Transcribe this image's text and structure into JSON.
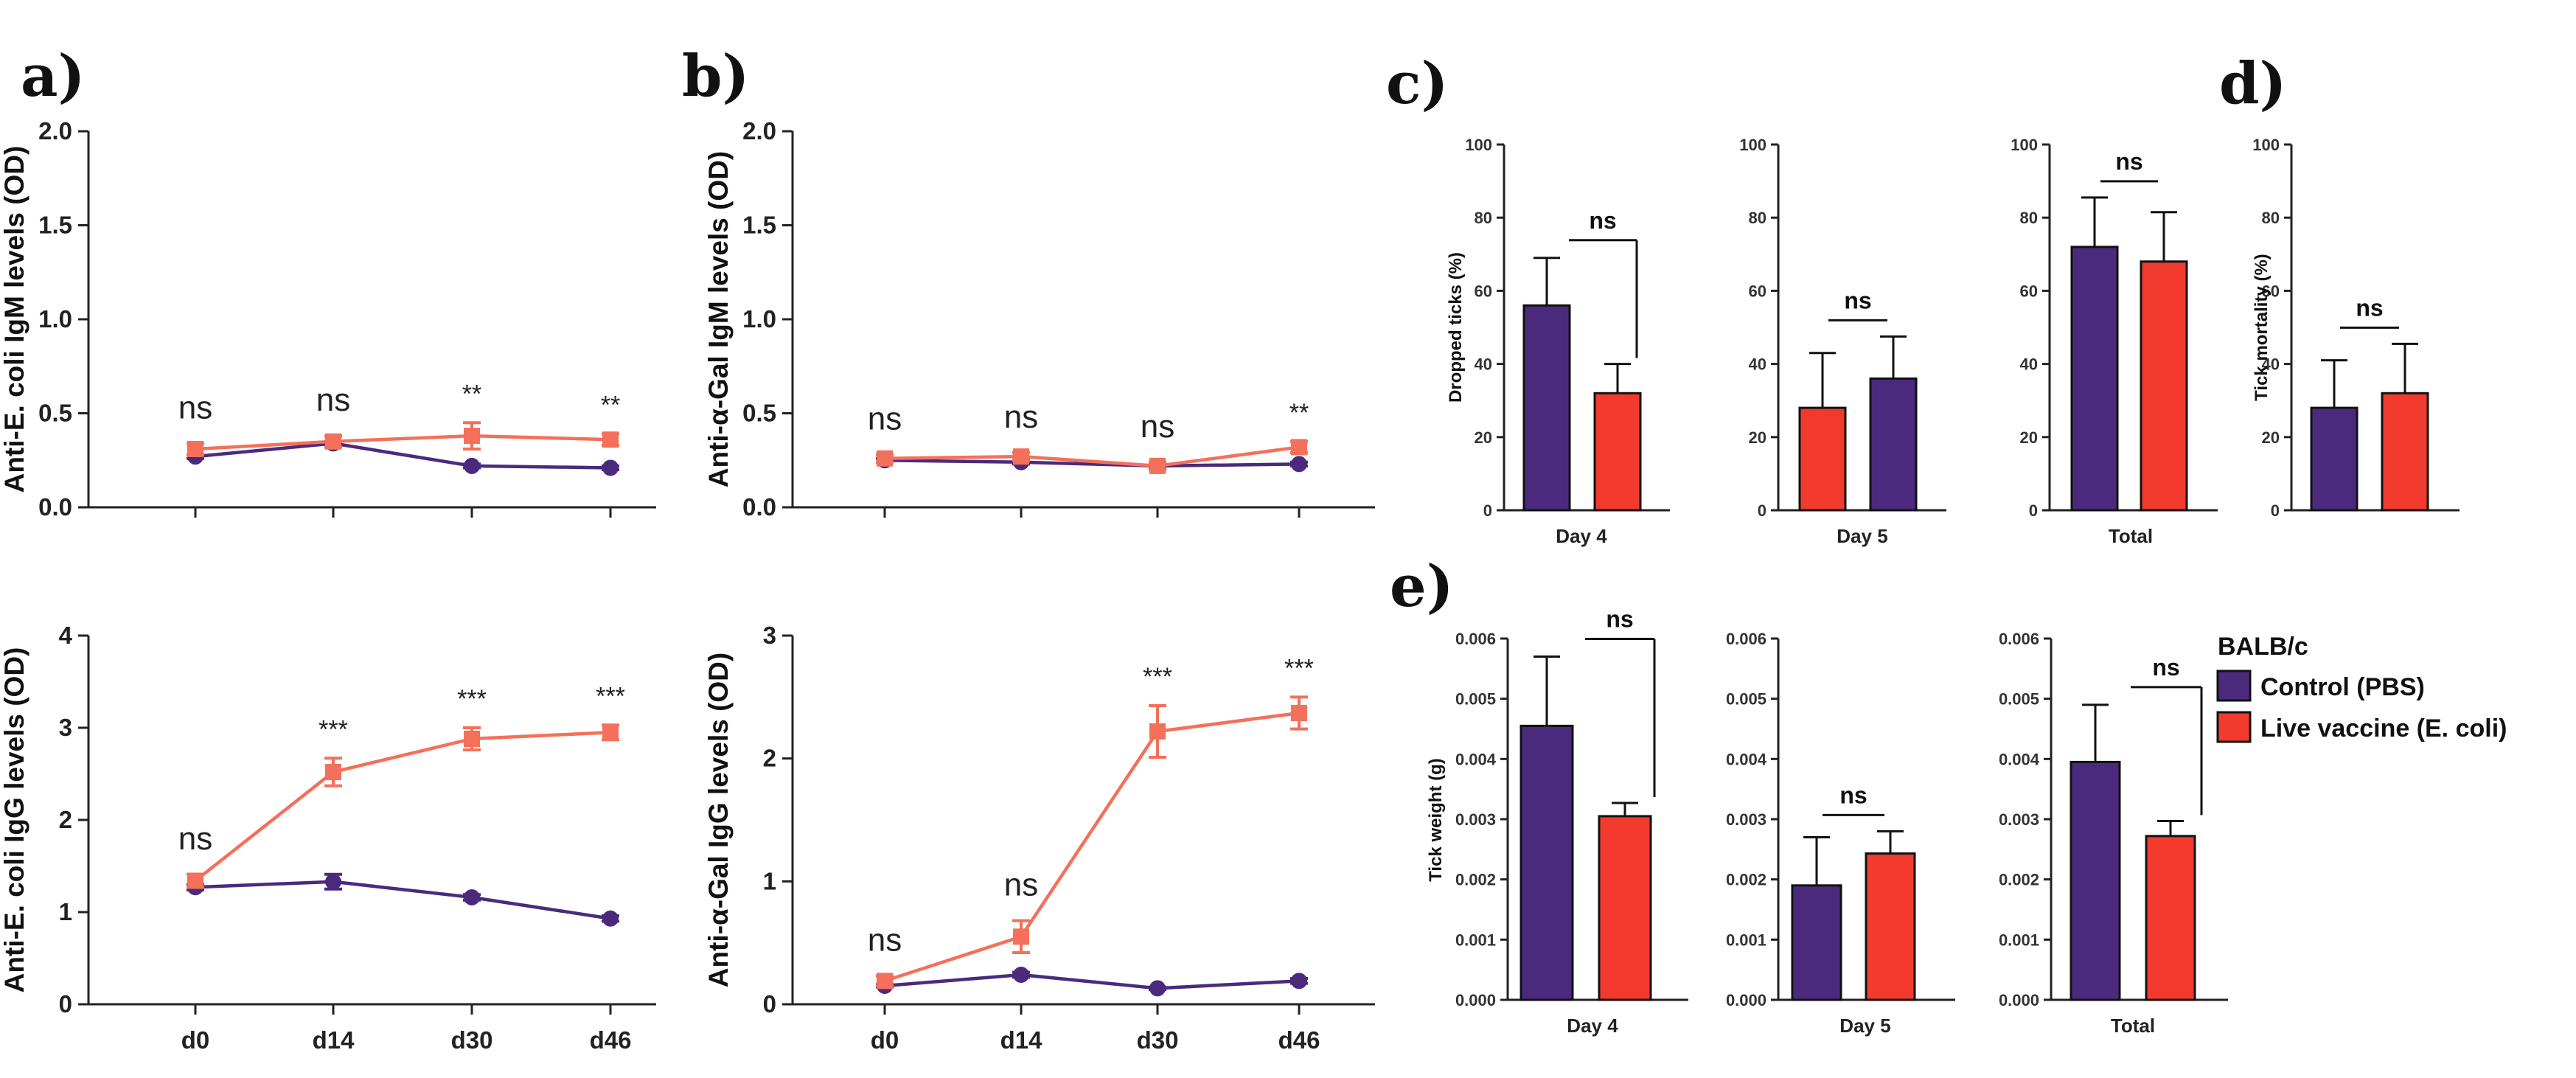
{
  "colors": {
    "control": "#4B2A7E",
    "vaccine": "#F4705A",
    "vaccine_bar": "#F23A2E",
    "axis": "#222222"
  },
  "panel_labels": [
    "a)",
    "b)",
    "c)",
    "d)",
    "e)"
  ],
  "legend": {
    "title": "BALB/c",
    "items": [
      {
        "label": "Control (PBS)",
        "color": "#4B2A7E"
      },
      {
        "label": "Live vaccine (E. coli)",
        "color": "#F23A2E"
      }
    ]
  },
  "chart_data": [
    {
      "id": "a_igm",
      "panel": "a)",
      "type": "line",
      "ylabel": "Anti-E. coli IgM levels (OD)",
      "ylim": [
        0,
        2.0
      ],
      "yticks": [
        "0.0",
        "0.5",
        "1.0",
        "1.5",
        "2.0"
      ],
      "ytick_values": [
        0,
        0.5,
        1.0,
        1.5,
        2.0
      ],
      "categories": [
        "d0",
        "d14",
        "d30",
        "d46"
      ],
      "series": [
        {
          "name": "Control (PBS)",
          "values": [
            0.27,
            0.34,
            0.22,
            0.21
          ],
          "errors": [
            0.01,
            0.01,
            0.01,
            0.01
          ]
        },
        {
          "name": "Live vaccine (E. coli)",
          "values": [
            0.31,
            0.35,
            0.38,
            0.36
          ],
          "errors": [
            0.03,
            0.03,
            0.07,
            0.03
          ]
        }
      ],
      "annotations": [
        "ns",
        "ns",
        "**",
        "**"
      ]
    },
    {
      "id": "a_igg",
      "panel": "a)",
      "type": "line",
      "ylabel": "Anti-E. coli IgG levels (OD)",
      "ylim": [
        0,
        4
      ],
      "yticks": [
        "0",
        "1",
        "2",
        "3",
        "4"
      ],
      "ytick_values": [
        0,
        1,
        2,
        3,
        4
      ],
      "categories": [
        "d0",
        "d14",
        "d30",
        "d46"
      ],
      "series": [
        {
          "name": "Control (PBS)",
          "values": [
            1.27,
            1.33,
            1.16,
            0.93
          ],
          "errors": [
            0.03,
            0.08,
            0.03,
            0.03
          ]
        },
        {
          "name": "Live vaccine (E. coli)",
          "values": [
            1.34,
            2.52,
            2.88,
            2.95
          ],
          "errors": [
            0.07,
            0.15,
            0.12,
            0.08
          ]
        }
      ],
      "annotations": [
        "ns",
        "***",
        "***",
        "***"
      ]
    },
    {
      "id": "b_igm",
      "panel": "b)",
      "type": "line",
      "ylabel": "Anti-α-Gal IgM levels (OD)",
      "ylim": [
        0,
        2.0
      ],
      "yticks": [
        "0.0",
        "0.5",
        "1.0",
        "1.5",
        "2.0"
      ],
      "ytick_values": [
        0,
        0.5,
        1.0,
        1.5,
        2.0
      ],
      "categories": [
        "d0",
        "d14",
        "d30",
        "d46"
      ],
      "series": [
        {
          "name": "Control (PBS)",
          "values": [
            0.25,
            0.24,
            0.22,
            0.23
          ],
          "errors": [
            0.01,
            0.01,
            0.01,
            0.01
          ]
        },
        {
          "name": "Live vaccine (E. coli)",
          "values": [
            0.26,
            0.27,
            0.22,
            0.32
          ],
          "errors": [
            0.02,
            0.02,
            0.02,
            0.03
          ]
        }
      ],
      "annotations": [
        "ns",
        "ns",
        "ns",
        "**"
      ]
    },
    {
      "id": "b_igg",
      "panel": "b)",
      "type": "line",
      "ylabel": "Anti-α-Gal IgG levels (OD)",
      "ylim": [
        0,
        3
      ],
      "yticks": [
        "0",
        "1",
        "2",
        "3"
      ],
      "ytick_values": [
        0,
        1,
        2,
        3
      ],
      "categories": [
        "d0",
        "d14",
        "d30",
        "d46"
      ],
      "series": [
        {
          "name": "Control (PBS)",
          "values": [
            0.15,
            0.24,
            0.13,
            0.19
          ],
          "errors": [
            0.01,
            0.02,
            0.01,
            0.02
          ]
        },
        {
          "name": "Live vaccine (E. coli)",
          "values": [
            0.19,
            0.55,
            2.22,
            2.37
          ],
          "errors": [
            0.04,
            0.13,
            0.21,
            0.13
          ]
        }
      ],
      "annotations": [
        "ns",
        "ns",
        "***",
        "***"
      ]
    },
    {
      "id": "c_day4",
      "panel": "c)",
      "type": "bar",
      "group": "c",
      "ylabel": "Dropped ticks (%)",
      "xlabel": "Day 4",
      "ylim": [
        0,
        100
      ],
      "yticks": [
        "0",
        "20",
        "40",
        "60",
        "80",
        "100"
      ],
      "ytick_values": [
        0,
        20,
        40,
        60,
        80,
        100
      ],
      "values": [
        56,
        32
      ],
      "errors": [
        13,
        8
      ],
      "bar_colors": [
        "#4B2A7E",
        "#F23A2E"
      ],
      "sig": "ns",
      "sig_style": "bracket"
    },
    {
      "id": "c_day5",
      "panel": "c)",
      "type": "bar",
      "group": "c",
      "ylabel": "",
      "xlabel": "Day 5",
      "ylim": [
        0,
        100
      ],
      "yticks": [
        "0",
        "20",
        "40",
        "60",
        "80",
        "100"
      ],
      "ytick_values": [
        0,
        20,
        40,
        60,
        80,
        100
      ],
      "values": [
        28,
        36
      ],
      "errors": [
        15,
        11.5
      ],
      "bar_colors": [
        "#F23A2E",
        "#4B2A7E"
      ],
      "sig": "ns",
      "sig_style": "line"
    },
    {
      "id": "c_total",
      "panel": "c)",
      "type": "bar",
      "group": "c",
      "ylabel": "",
      "xlabel": "Total",
      "ylim": [
        0,
        100
      ],
      "yticks": [
        "0",
        "20",
        "40",
        "60",
        "80",
        "100"
      ],
      "ytick_values": [
        0,
        20,
        40,
        60,
        80,
        100
      ],
      "values": [
        72,
        68
      ],
      "errors": [
        13.5,
        13.5
      ],
      "bar_colors": [
        "#4B2A7E",
        "#F23A2E"
      ],
      "sig": "ns",
      "sig_style": "line"
    },
    {
      "id": "d_mort",
      "panel": "d)",
      "type": "bar",
      "group": "c",
      "ylabel": "Tick mortality (%)",
      "xlabel": "",
      "ylim": [
        0,
        100
      ],
      "yticks": [
        "0",
        "20",
        "40",
        "60",
        "80",
        "100"
      ],
      "ytick_values": [
        0,
        20,
        40,
        60,
        80,
        100
      ],
      "values": [
        28,
        32
      ],
      "errors": [
        13,
        13.5
      ],
      "bar_colors": [
        "#4B2A7E",
        "#F23A2E"
      ],
      "sig": "ns",
      "sig_style": "line"
    },
    {
      "id": "e_day4",
      "panel": "e)",
      "type": "bar",
      "group": "e",
      "ylabel": "Tick weight (g)",
      "xlabel": "Day 4",
      "ylim": [
        0,
        0.006
      ],
      "yticks": [
        "0.000",
        "0.001",
        "0.002",
        "0.003",
        "0.004",
        "0.005",
        "0.006"
      ],
      "ytick_values": [
        0,
        0.001,
        0.002,
        0.003,
        0.004,
        0.005,
        0.006
      ],
      "values": [
        0.00455,
        0.00305
      ],
      "errors": [
        0.00115,
        0.00022
      ],
      "bar_colors": [
        "#4B2A7E",
        "#F23A2E"
      ],
      "sig": "ns",
      "sig_style": "bracket"
    },
    {
      "id": "e_day5",
      "panel": "e)",
      "type": "bar",
      "group": "e",
      "ylabel": "",
      "xlabel": "Day 5",
      "ylim": [
        0,
        0.006
      ],
      "yticks": [
        "0.000",
        "0.001",
        "0.002",
        "0.003",
        "0.004",
        "0.005",
        "0.006"
      ],
      "ytick_values": [
        0,
        0.001,
        0.002,
        0.003,
        0.004,
        0.005,
        0.006
      ],
      "values": [
        0.0019,
        0.00243
      ],
      "errors": [
        0.0008,
        0.00037
      ],
      "bar_colors": [
        "#4B2A7E",
        "#F23A2E"
      ],
      "sig": "ns",
      "sig_style": "line"
    },
    {
      "id": "e_total",
      "panel": "e)",
      "type": "bar",
      "group": "e",
      "ylabel": "",
      "xlabel": "Total",
      "ylim": [
        0,
        0.006
      ],
      "yticks": [
        "0.000",
        "0.001",
        "0.002",
        "0.003",
        "0.004",
        "0.005",
        "0.006"
      ],
      "ytick_values": [
        0,
        0.001,
        0.002,
        0.003,
        0.004,
        0.005,
        0.006
      ],
      "values": [
        0.00395,
        0.00272
      ],
      "errors": [
        0.00095,
        0.00025
      ],
      "bar_colors": [
        "#4B2A7E",
        "#F23A2E"
      ],
      "sig": "ns",
      "sig_style": "bracket"
    }
  ]
}
